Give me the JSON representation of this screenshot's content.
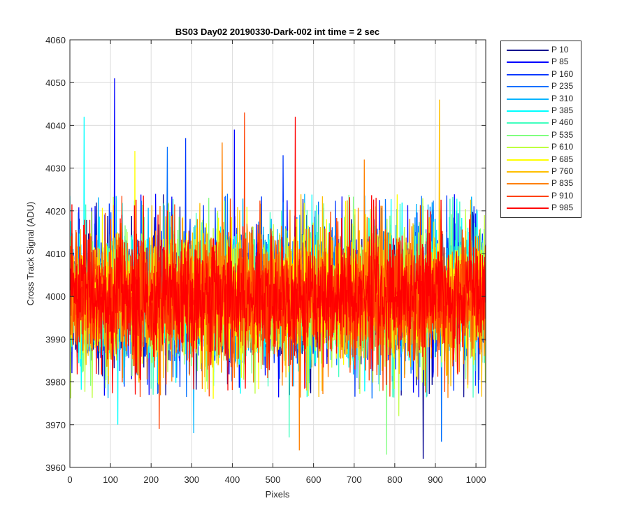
{
  "chart_data": {
    "type": "line",
    "title": "BS03 Day02 20190330-Dark-002 int time = 2 sec",
    "xlabel": "Pixels",
    "ylabel": "Cross Track Signal (ADU)",
    "xlim": [
      0,
      1024
    ],
    "ylim": [
      3960,
      4060
    ],
    "xticks": [
      0,
      100,
      200,
      300,
      400,
      500,
      600,
      700,
      800,
      900,
      1000
    ],
    "yticks": [
      3960,
      3970,
      3980,
      3990,
      4000,
      4010,
      4020,
      4030,
      4040,
      4050,
      4060
    ],
    "grid": true,
    "legend_position": "outside-top-right",
    "noise": {
      "center": 4000,
      "typical_range": [
        3982,
        4018
      ],
      "n_points": 1024
    },
    "series": [
      {
        "name": "P 10",
        "color": "#00008f",
        "spikes": [
          [
            870,
            3962
          ]
        ]
      },
      {
        "name": "P 85",
        "color": "#0000ff",
        "spikes": [
          [
            110,
            4051
          ],
          [
            405,
            4039
          ]
        ]
      },
      {
        "name": "P 160",
        "color": "#0038ff",
        "spikes": [
          [
            285,
            4037
          ],
          [
            525,
            4033
          ]
        ]
      },
      {
        "name": "P 235",
        "color": "#0070ff",
        "spikes": [
          [
            240,
            4035
          ],
          [
            915,
            3966
          ]
        ]
      },
      {
        "name": "P 310",
        "color": "#00b4ff",
        "spikes": [
          [
            305,
            3968
          ]
        ]
      },
      {
        "name": "P 385",
        "color": "#00ffff",
        "spikes": [
          [
            35,
            4042
          ],
          [
            118,
            3970
          ]
        ]
      },
      {
        "name": "P 460",
        "color": "#40ffbf",
        "spikes": [
          [
            540,
            3967
          ]
        ]
      },
      {
        "name": "P 535",
        "color": "#80ff80",
        "spikes": [
          [
            780,
            3963
          ]
        ]
      },
      {
        "name": "P 610",
        "color": "#bfff40",
        "spikes": [
          [
            810,
            3972
          ]
        ]
      },
      {
        "name": "P 685",
        "color": "#ffff00",
        "spikes": [
          [
            160,
            4034
          ]
        ]
      },
      {
        "name": "P 760",
        "color": "#ffbf00",
        "spikes": [
          [
            910,
            4046
          ]
        ]
      },
      {
        "name": "P 835",
        "color": "#ff8000",
        "spikes": [
          [
            375,
            4036
          ],
          [
            565,
            3964
          ],
          [
            725,
            4032
          ]
        ]
      },
      {
        "name": "P 910",
        "color": "#ff4000",
        "spikes": [
          [
            430,
            4043
          ],
          [
            220,
            3969
          ]
        ]
      },
      {
        "name": "P 985",
        "color": "#ff0000",
        "spikes": [
          [
            555,
            4042
          ]
        ]
      }
    ]
  }
}
